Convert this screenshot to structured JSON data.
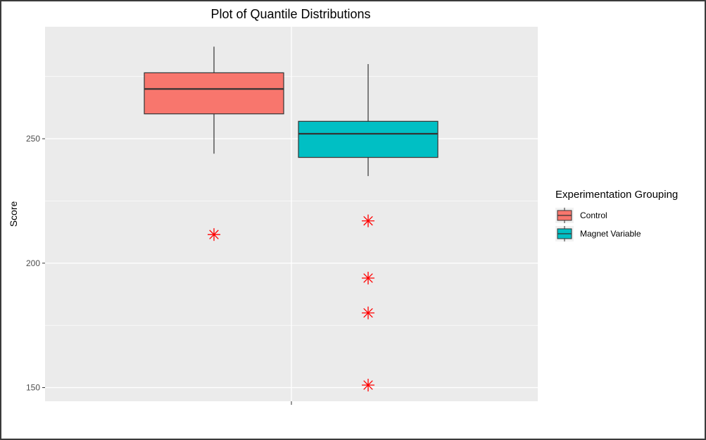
{
  "chart_data": {
    "type": "box",
    "title": "Plot of Quantile Distributions",
    "xlabel": "",
    "ylabel": "Score",
    "ylim": [
      144.5,
      295
    ],
    "y_ticks": [
      150,
      200,
      250
    ],
    "grid": true,
    "legend": {
      "title": "Experimentation Grouping",
      "placement": "right"
    },
    "series": [
      {
        "name": "Control",
        "color": "#F8766D",
        "whisker_low": 244,
        "q1": 260,
        "median": 270,
        "q3": 276.5,
        "whisker_high": 287,
        "outliers": [
          211.5
        ]
      },
      {
        "name": "Magnet Variable",
        "color": "#00BFC4",
        "whisker_low": 235,
        "q1": 242.5,
        "median": 252,
        "q3": 257,
        "whisker_high": 280,
        "outliers": [
          217,
          194,
          180,
          151
        ]
      }
    ]
  }
}
